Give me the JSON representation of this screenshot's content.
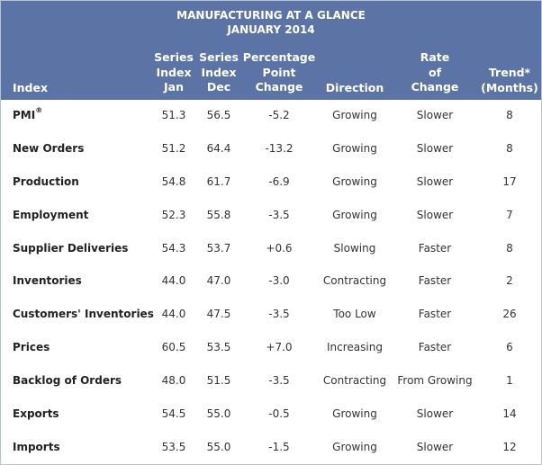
{
  "title_line1": "MANUFACTURING AT A GLANCE",
  "title_line2": "JANUARY 2014",
  "columns": {
    "index": "Index",
    "series_jan": [
      "Series",
      "Index",
      "Jan"
    ],
    "series_dec": [
      "Series",
      "Index",
      "Dec"
    ],
    "pp_change": [
      "Percentage",
      "Point",
      "Change"
    ],
    "direction": "Direction",
    "rate": [
      "Rate",
      "of",
      "Change"
    ],
    "trend": [
      "Trend*",
      "(Months)"
    ]
  },
  "rows": [
    {
      "name": "PMI",
      "sup": "®",
      "jan": "51.3",
      "dec": "56.5",
      "change": "-5.2",
      "direction": "Growing",
      "rate": "Slower",
      "trend": "8"
    },
    {
      "name": "New Orders",
      "jan": "51.2",
      "dec": "64.4",
      "change": "-13.2",
      "direction": "Growing",
      "rate": "Slower",
      "trend": "8"
    },
    {
      "name": "Production",
      "jan": "54.8",
      "dec": "61.7",
      "change": "-6.9",
      "direction": "Growing",
      "rate": "Slower",
      "trend": "17"
    },
    {
      "name": "Employment",
      "jan": "52.3",
      "dec": "55.8",
      "change": "-3.5",
      "direction": "Growing",
      "rate": "Slower",
      "trend": "7"
    },
    {
      "name": "Supplier Deliveries",
      "jan": "54.3",
      "dec": "53.7",
      "change": "+0.6",
      "direction": "Slowing",
      "rate": "Faster",
      "trend": "8"
    },
    {
      "name": "Inventories",
      "jan": "44.0",
      "dec": "47.0",
      "change": "-3.0",
      "direction": "Contracting",
      "rate": "Faster",
      "trend": "2"
    },
    {
      "name": "Customers' Inventories",
      "jan": "44.0",
      "dec": "47.5",
      "change": "-3.5",
      "direction": "Too Low",
      "rate": "Faster",
      "trend": "26"
    },
    {
      "name": "Prices",
      "jan": "60.5",
      "dec": "53.5",
      "change": "+7.0",
      "direction": "Increasing",
      "rate": "Faster",
      "trend": "6"
    },
    {
      "name": "Backlog of Orders",
      "jan": "48.0",
      "dec": "51.5",
      "change": "-3.5",
      "direction": "Contracting",
      "rate": "From Growing",
      "trend": "1"
    },
    {
      "name": "Exports",
      "jan": "54.5",
      "dec": "55.0",
      "change": "-0.5",
      "direction": "Growing",
      "rate": "Slower",
      "trend": "14"
    },
    {
      "name": "Imports",
      "jan": "53.5",
      "dec": "55.0",
      "change": "-1.5",
      "direction": "Growing",
      "rate": "Slower",
      "trend": "12"
    }
  ]
}
